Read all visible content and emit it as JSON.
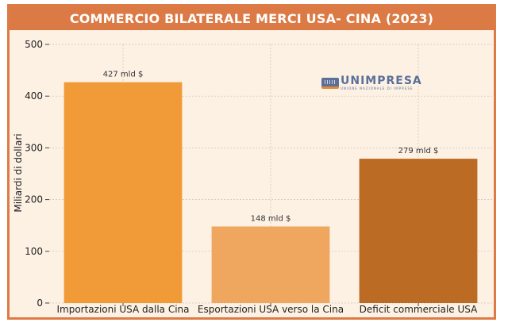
{
  "logo": {
    "brand": "UNIMPRESA",
    "subtitle": "UNIONE NAZIONALE DI IMPRESE"
  },
  "colors": {
    "frame": "#de7b44",
    "background": "#fdf1e4",
    "bars": [
      "#f19b38",
      "#efa75f",
      "#bc6b25"
    ]
  },
  "chart_data": {
    "type": "bar",
    "title": "COMMERCIO BILATERALE MERCI USA- CINA (2023)",
    "xlabel": "",
    "ylabel": "Miliardi di dollari",
    "categories": [
      "Importazioni USA dalla Cina",
      "Esportazioni USA verso la Cina",
      "Deficit commerciale USA"
    ],
    "values": [
      427,
      148,
      279
    ],
    "data_labels": [
      "427 mld $",
      "148 mld $",
      "279 mld $"
    ],
    "ylim": [
      0,
      500
    ],
    "yticks": [
      0,
      100,
      200,
      300,
      400,
      500
    ],
    "grid": true
  }
}
